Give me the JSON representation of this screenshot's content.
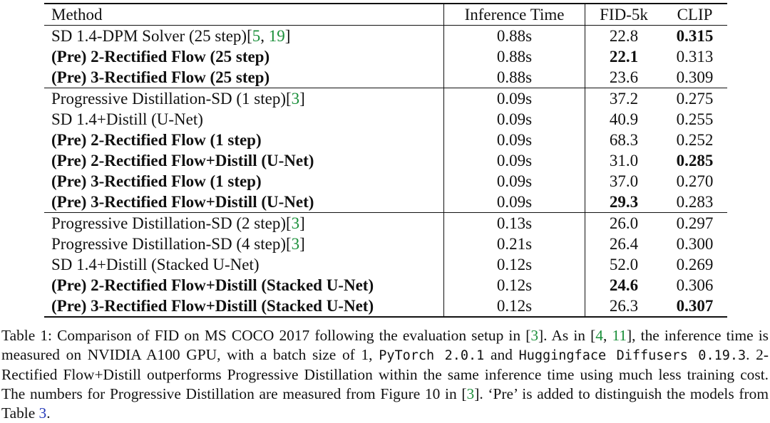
{
  "table": {
    "headers": [
      "Method",
      "Inference Time",
      "FID-5k",
      "CLIP"
    ],
    "groups": [
      [
        {
          "method": "SD 1.4-DPM Solver (25 step)",
          "cite": [
            "5",
            "19"
          ],
          "time": "0.88s",
          "fid": "22.8",
          "clip": "0.315",
          "bold_method": false,
          "bold_fid": false,
          "bold_clip": true
        },
        {
          "method": "(Pre) 2-Rectified Flow (25 step)",
          "cite": [],
          "time": "0.88s",
          "fid": "22.1",
          "clip": "0.313",
          "bold_method": true,
          "bold_fid": true,
          "bold_clip": false
        },
        {
          "method": "(Pre) 3-Rectified Flow (25 step)",
          "cite": [],
          "time": "0.88s",
          "fid": "23.6",
          "clip": "0.309",
          "bold_method": true,
          "bold_fid": false,
          "bold_clip": false
        }
      ],
      [
        {
          "method": "Progressive Distillation-SD (1 step)",
          "cite": [
            "3"
          ],
          "time": "0.09s",
          "fid": "37.2",
          "clip": "0.275",
          "bold_method": false,
          "bold_fid": false,
          "bold_clip": false
        },
        {
          "method": "SD 1.4+Distill (U-Net)",
          "cite": [],
          "time": "0.09s",
          "fid": "40.9",
          "clip": "0.255",
          "bold_method": false,
          "bold_fid": false,
          "bold_clip": false
        },
        {
          "method": "(Pre) 2-Rectified Flow (1 step)",
          "cite": [],
          "time": "0.09s",
          "fid": "68.3",
          "clip": "0.252",
          "bold_method": true,
          "bold_fid": false,
          "bold_clip": false
        },
        {
          "method": "(Pre) 2-Rectified Flow+Distill (U-Net)",
          "cite": [],
          "time": "0.09s",
          "fid": "31.0",
          "clip": "0.285",
          "bold_method": true,
          "bold_fid": false,
          "bold_clip": true
        },
        {
          "method": "(Pre) 3-Rectified Flow (1 step)",
          "cite": [],
          "time": "0.09s",
          "fid": "37.0",
          "clip": "0.270",
          "bold_method": true,
          "bold_fid": false,
          "bold_clip": false
        },
        {
          "method": "(Pre) 3-Rectified Flow+Distill (U-Net)",
          "cite": [],
          "time": "0.09s",
          "fid": "29.3",
          "clip": "0.283",
          "bold_method": true,
          "bold_fid": true,
          "bold_clip": false
        }
      ],
      [
        {
          "method": "Progressive Distillation-SD (2 step)",
          "cite": [
            "3"
          ],
          "time": "0.13s",
          "fid": "26.0",
          "clip": "0.297",
          "bold_method": false,
          "bold_fid": false,
          "bold_clip": false
        },
        {
          "method": "Progressive Distillation-SD (4 step)",
          "cite": [
            "3"
          ],
          "time": "0.21s",
          "fid": "26.4",
          "clip": "0.300",
          "bold_method": false,
          "bold_fid": false,
          "bold_clip": false
        },
        {
          "method": "SD 1.4+Distill (Stacked U-Net)",
          "cite": [],
          "time": "0.12s",
          "fid": "52.0",
          "clip": "0.269",
          "bold_method": false,
          "bold_fid": false,
          "bold_clip": false
        },
        {
          "method": "(Pre) 2-Rectified Flow+Distill (Stacked U-Net)",
          "cite": [],
          "time": "0.12s",
          "fid": "24.6",
          "clip": "0.306",
          "bold_method": true,
          "bold_fid": true,
          "bold_clip": false
        },
        {
          "method": "(Pre) 3-Rectified Flow+Distill (Stacked U-Net)",
          "cite": [],
          "time": "0.12s",
          "fid": "26.3",
          "clip": "0.307",
          "bold_method": true,
          "bold_fid": false,
          "bold_clip": true
        }
      ]
    ]
  },
  "caption": {
    "parts": [
      {
        "t": "Table 1: Comparison of FID on MS COCO 2017 following the evaluation setup in "
      },
      {
        "t": "[",
        "s": ""
      },
      {
        "t": "3",
        "s": "cite"
      },
      {
        "t": "]. As in ["
      },
      {
        "t": "4",
        "s": "cite"
      },
      {
        "t": ", "
      },
      {
        "t": "11",
        "s": "cite"
      },
      {
        "t": "], the inference time is measured on NVIDIA A100 GPU, with a batch size of 1, "
      },
      {
        "t": "PyTorch 2.0.1",
        "s": "mono"
      },
      {
        "t": " and "
      },
      {
        "t": "Huggingface Diffusers 0.19.3",
        "s": "mono"
      },
      {
        "t": ". 2-Rectified Flow+Distill outperforms Progressive Distillation within the same inference time using much less training cost. The numbers for Progressive Distillation are measured from Figure 10 in ["
      },
      {
        "t": "3",
        "s": "cite"
      },
      {
        "t": "]. ‘Pre’ is added to distinguish the models from Table "
      },
      {
        "t": "3",
        "s": "tref"
      },
      {
        "t": "."
      }
    ]
  }
}
